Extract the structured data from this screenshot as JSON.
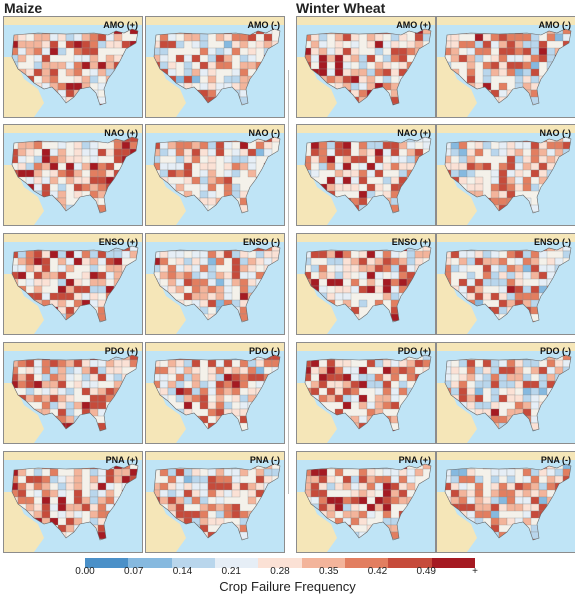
{
  "groups": [
    {
      "title": "Maize",
      "panels": [
        "AMO (+)",
        "AMO (-)",
        "NAO (+)",
        "NAO (-)",
        "ENSO (+)",
        "ENSO (-)",
        "PDO (+)",
        "PDO (-)",
        "PNA (+)",
        "PNA (-)"
      ]
    },
    {
      "title": "Winter Wheat",
      "panels": [
        "AMO (+)",
        "AMO (-)",
        "NAO (+)",
        "NAO (-)",
        "ENSO (+)",
        "ENSO (-)",
        "PDO (+)",
        "PDO (-)",
        "PNA (+)",
        "PNA (-)"
      ]
    }
  ],
  "legend": {
    "title": "Crop Failure Frequency",
    "ticks": [
      "0.00",
      "0.07",
      "0.14",
      "0.21",
      "0.28",
      "0.35",
      "0.42",
      "0.49",
      "+"
    ],
    "colors": [
      "#4a90c8",
      "#86b9df",
      "#b9d6ec",
      "#e6eef6",
      "#fbe1d5",
      "#f3b49b",
      "#e27e60",
      "#c64b3b",
      "#a51a22"
    ]
  },
  "colors": {
    "ocean": "#bfe4f6",
    "neighbor_land": "#f5e6b8",
    "county_border": "#8c8c8c"
  }
}
